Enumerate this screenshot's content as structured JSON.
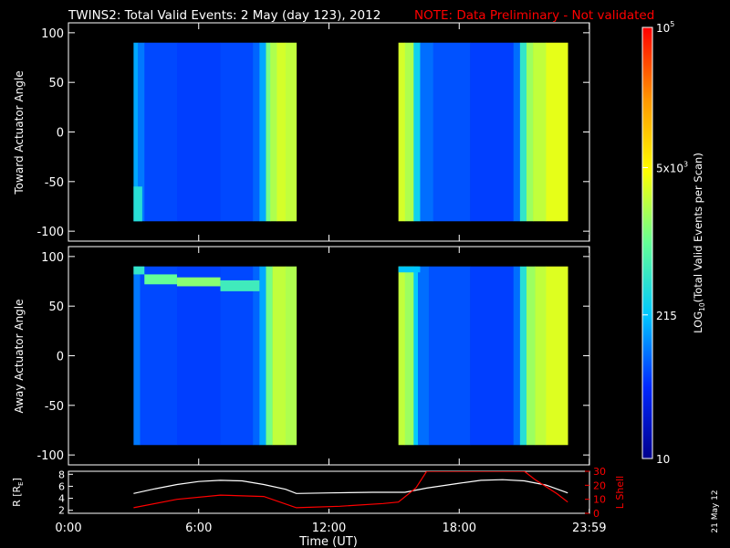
{
  "header": {
    "title": "TWINS2: Total Valid Events:  2 May (day 123), 2012",
    "note": "NOTE: Data Preliminary - Not validated"
  },
  "colors": {
    "background": "#000000",
    "note": "#ff0000",
    "axes": "#ffffff",
    "radius_line": "#ffffff",
    "lshell_line": "#ff0000"
  },
  "colorbar": {
    "label_prefix": "LOG",
    "label_sub": "10",
    "label_suffix": "(Total Valid Events per Scan)",
    "ticks": [
      {
        "value": 10,
        "text": "10"
      },
      {
        "value": 215,
        "text": "215"
      },
      {
        "value": 5000,
        "text_base": "5x10",
        "text_sup": "3"
      },
      {
        "value": 100000,
        "text_base": "10",
        "text_sup": "5"
      }
    ],
    "range": [
      10,
      100000
    ],
    "scale": "log",
    "colormap": [
      "#00008c",
      "#0028ff",
      "#00c8ff",
      "#64ff96",
      "#ffff00",
      "#ff9600",
      "#ff0000"
    ]
  },
  "footer": {
    "xlabel": "Time (UT)",
    "date_stamp": "21 May 12",
    "x_ticks": [
      "0:00",
      "6:00",
      "12:00",
      "18:00",
      "23:59"
    ]
  },
  "chart_data": [
    {
      "type": "heatmap",
      "ylabel": "Toward Actuator Angle",
      "xlim": [
        0,
        24
      ],
      "ylim": [
        -110,
        110
      ],
      "y_ticks": [
        100,
        50,
        0,
        -50,
        -100
      ],
      "angle_range": [
        -90,
        90
      ],
      "columns": [
        {
          "t": [
            3.0,
            3.2
          ],
          "level": 0.3
        },
        {
          "t": [
            3.2,
            3.5
          ],
          "level": 0.25
        },
        {
          "t": [
            3.5,
            5.0
          ],
          "level": 0.2
        },
        {
          "t": [
            5.0,
            7.0
          ],
          "level": 0.19
        },
        {
          "t": [
            7.0,
            8.5
          ],
          "level": 0.2
        },
        {
          "t": [
            8.5,
            8.8
          ],
          "level": 0.23
        },
        {
          "t": [
            8.8,
            9.1
          ],
          "level": 0.3
        },
        {
          "t": [
            9.1,
            9.3
          ],
          "level": 0.52
        },
        {
          "t": [
            9.3,
            9.6
          ],
          "level": 0.58
        },
        {
          "t": [
            9.6,
            10.0
          ],
          "level": 0.62
        },
        {
          "t": [
            10.0,
            10.5
          ],
          "level": 0.6
        },
        {
          "t": [
            15.2,
            15.5
          ],
          "level": 0.62
        },
        {
          "t": [
            15.5,
            15.9
          ],
          "level": 0.58
        },
        {
          "t": [
            15.9,
            16.2
          ],
          "level": 0.36
        },
        {
          "t": [
            16.2,
            16.8
          ],
          "level": 0.24
        },
        {
          "t": [
            16.8,
            18.5
          ],
          "level": 0.21
        },
        {
          "t": [
            18.5,
            20.5
          ],
          "level": 0.19
        },
        {
          "t": [
            20.5,
            20.8
          ],
          "level": 0.24
        },
        {
          "t": [
            20.8,
            21.1
          ],
          "level": 0.42
        },
        {
          "t": [
            21.1,
            21.4
          ],
          "level": 0.56
        },
        {
          "t": [
            21.4,
            22.0
          ],
          "level": 0.6
        },
        {
          "t": [
            22.0,
            23.0
          ],
          "level": 0.64
        }
      ],
      "features": [
        {
          "t": [
            3.0,
            3.4
          ],
          "angle": [
            -90,
            -55
          ],
          "level": 0.4
        }
      ]
    },
    {
      "type": "heatmap",
      "ylabel": "Away Actuator Angle",
      "xlim": [
        0,
        24
      ],
      "ylim": [
        -110,
        110
      ],
      "y_ticks": [
        100,
        50,
        0,
        -50,
        -100
      ],
      "angle_range": [
        -90,
        90
      ],
      "columns": [
        {
          "t": [
            3.0,
            3.3
          ],
          "level": 0.25
        },
        {
          "t": [
            3.3,
            5.0
          ],
          "level": 0.2
        },
        {
          "t": [
            5.0,
            7.0
          ],
          "level": 0.19
        },
        {
          "t": [
            7.0,
            8.5
          ],
          "level": 0.2
        },
        {
          "t": [
            8.5,
            8.8
          ],
          "level": 0.23
        },
        {
          "t": [
            8.8,
            9.1
          ],
          "level": 0.3
        },
        {
          "t": [
            9.1,
            9.4
          ],
          "level": 0.52
        },
        {
          "t": [
            9.4,
            10.0
          ],
          "level": 0.6
        },
        {
          "t": [
            10.0,
            10.5
          ],
          "level": 0.58
        },
        {
          "t": [
            15.2,
            15.5
          ],
          "level": 0.6
        },
        {
          "t": [
            15.5,
            15.9
          ],
          "level": 0.56
        },
        {
          "t": [
            15.9,
            16.1
          ],
          "level": 0.34
        },
        {
          "t": [
            16.1,
            16.6
          ],
          "level": 0.24
        },
        {
          "t": [
            16.6,
            18.5
          ],
          "level": 0.21
        },
        {
          "t": [
            18.5,
            20.5
          ],
          "level": 0.19
        },
        {
          "t": [
            20.5,
            20.8
          ],
          "level": 0.24
        },
        {
          "t": [
            20.8,
            21.1
          ],
          "level": 0.4
        },
        {
          "t": [
            21.1,
            21.5
          ],
          "level": 0.56
        },
        {
          "t": [
            21.5,
            22.0
          ],
          "level": 0.6
        },
        {
          "t": [
            22.0,
            23.0
          ],
          "level": 0.63
        }
      ],
      "features": [
        {
          "t": [
            3.0,
            3.5
          ],
          "angle": [
            82,
            90
          ],
          "level": 0.42
        },
        {
          "t": [
            3.5,
            5.0
          ],
          "angle": [
            72,
            82
          ],
          "level": 0.5
        },
        {
          "t": [
            5.0,
            7.0
          ],
          "angle": [
            70,
            79
          ],
          "level": 0.54
        },
        {
          "t": [
            7.0,
            8.8
          ],
          "angle": [
            65,
            76
          ],
          "level": 0.44
        },
        {
          "t": [
            15.2,
            16.2
          ],
          "angle": [
            84,
            90
          ],
          "level": 0.33
        }
      ]
    },
    {
      "type": "line",
      "xlabel": "Time (UT)",
      "ylabel_left": "R [R",
      "ylabel_left_sub": "E",
      "ylabel_left_end": "]",
      "ylabel_right": "L Shell",
      "xlim": [
        0,
        24
      ],
      "ylim_left": [
        1.5,
        8.5
      ],
      "ylim_right": [
        0,
        30
      ],
      "y_ticks_left": [
        2,
        4,
        6,
        8
      ],
      "y_ticks_right": [
        0,
        10,
        20,
        30
      ],
      "series": [
        {
          "name": "R",
          "axis": "left",
          "x": [
            3.0,
            4.0,
            5.0,
            6.0,
            7.0,
            8.0,
            9.0,
            10.0,
            10.5,
            12.0,
            14.0,
            15.5,
            16.5,
            18.0,
            19.0,
            20.0,
            21.0,
            22.0,
            23.0
          ],
          "y": [
            4.8,
            5.6,
            6.3,
            6.8,
            7.0,
            6.9,
            6.3,
            5.5,
            4.8,
            4.9,
            5.0,
            5.0,
            5.7,
            6.5,
            7.0,
            7.1,
            6.9,
            6.2,
            4.9
          ]
        },
        {
          "name": "L Shell",
          "axis": "right",
          "x": [
            3.0,
            5.0,
            7.0,
            9.0,
            10.5,
            12.5,
            14.5,
            15.2,
            16.0,
            16.5,
            21.0,
            21.5,
            22.5,
            23.0
          ],
          "y": [
            4,
            10,
            13,
            12,
            4,
            5,
            7,
            8,
            18,
            30,
            30,
            24,
            14,
            8
          ]
        }
      ]
    }
  ]
}
